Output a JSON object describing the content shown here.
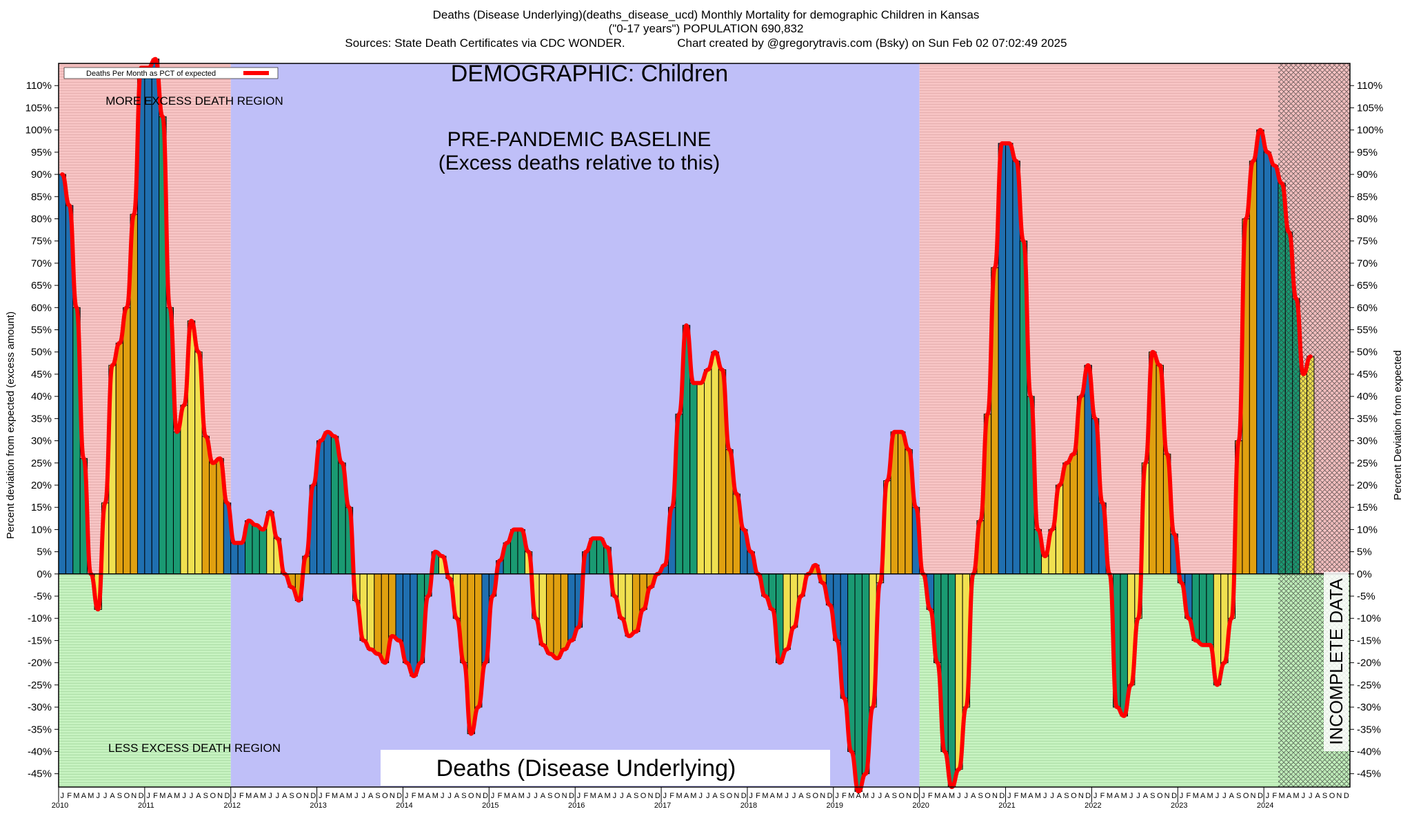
{
  "header": {
    "line1": "Deaths (Disease Underlying)(deaths_disease_ucd) Monthly Mortality for demographic Children in Kansas",
    "line2": "(\"0-17 years\") POPULATION 690,832",
    "line3_left": "Sources: State Death Certificates via CDC WONDER.",
    "line3_right": "Chart created by @gregorytravis.com (Bsky) on Sun Feb 02 07:02:49 2025"
  },
  "chart_data": {
    "type": "bar",
    "title": "DEMOGRAPHIC: Children",
    "bottom_title": "Deaths (Disease Underlying)",
    "ylabel_left": "Percent deviation from expected (excess amount)",
    "ylabel_right": "Percent Deviation from expected",
    "legend": "Deaths Per Month as PCT of expected",
    "legend_placement": "top-left",
    "ylim": [
      -48,
      115
    ],
    "yticks": [
      -45,
      -40,
      -35,
      -30,
      -25,
      -20,
      -15,
      -10,
      -5,
      0,
      5,
      10,
      15,
      20,
      25,
      30,
      35,
      40,
      45,
      50,
      55,
      60,
      65,
      70,
      75,
      80,
      85,
      90,
      95,
      100,
      105,
      110
    ],
    "region_labels": {
      "more": "MORE EXCESS DEATH REGION",
      "less": "LESS EXCESS DEATH REGION",
      "baseline_1": "PRE-PANDEMIC BASELINE",
      "baseline_2": "(Excess deaths relative to this)",
      "incomplete": "INCOMPLETE DATA"
    },
    "baseline_period": [
      "2012-01",
      "2019-12"
    ],
    "incomplete_period": [
      "2024-03",
      "2024-12"
    ],
    "month_letters": [
      "J",
      "F",
      "M",
      "A",
      "M",
      "J",
      "J",
      "A",
      "S",
      "O",
      "N",
      "D"
    ],
    "years": [
      "2010",
      "2011",
      "2012",
      "2013",
      "2014",
      "2015",
      "2016",
      "2017",
      "2018",
      "2019",
      "2020",
      "2021",
      "2022",
      "2023",
      "2024"
    ],
    "season_colors": {
      "winter": "#1f6fb0",
      "spring": "#1a9a72",
      "summer": "#f0e050",
      "fall": "#e0a010"
    },
    "line_color": "#ff0000",
    "values": [
      90,
      83,
      60,
      26,
      0,
      -8,
      16,
      47,
      52,
      60,
      81,
      114,
      114,
      116,
      103,
      60,
      32,
      38,
      57,
      50,
      31,
      25,
      26,
      16,
      7,
      7,
      12,
      11,
      10,
      14,
      8,
      0,
      -3,
      -6,
      4,
      20,
      30,
      32,
      31,
      25,
      15,
      -6,
      -15,
      -17,
      -18,
      -20,
      -14,
      -15,
      -20,
      -23,
      -20,
      -5,
      5,
      4,
      -1,
      -10,
      -20,
      -36,
      -30,
      -20,
      -5,
      3,
      7,
      10,
      10,
      5,
      -10,
      -16,
      -18,
      -19,
      -17,
      -15,
      -12,
      5,
      8,
      8,
      6,
      -5,
      -10,
      -14,
      -13,
      -8,
      -3,
      0,
      2,
      15,
      36,
      56,
      43,
      43,
      46,
      50,
      46,
      28,
      18,
      10,
      5,
      0,
      -5,
      -8,
      -20,
      -17,
      -12,
      -5,
      0,
      2,
      -2,
      -7,
      -15,
      -28,
      -40,
      -49,
      -45,
      -30,
      -2,
      21,
      32,
      32,
      28,
      15,
      0,
      -8,
      -20,
      -40,
      -48,
      -44,
      -30,
      0,
      12,
      36,
      69,
      97,
      97,
      93,
      75,
      40,
      10,
      4,
      10,
      20,
      25,
      27,
      40,
      47,
      35,
      16,
      0,
      -30,
      -32,
      -25,
      -10,
      25,
      50,
      47,
      27,
      9,
      -2,
      -10,
      -15,
      -16,
      -16,
      -25,
      -20,
      -10,
      30,
      80,
      93,
      100,
      95,
      92,
      88,
      77,
      62,
      45,
      49,
      0,
      0,
      0,
      0,
      0
    ],
    "source_note": "values listed Jan 2010 through Dec 2024"
  }
}
